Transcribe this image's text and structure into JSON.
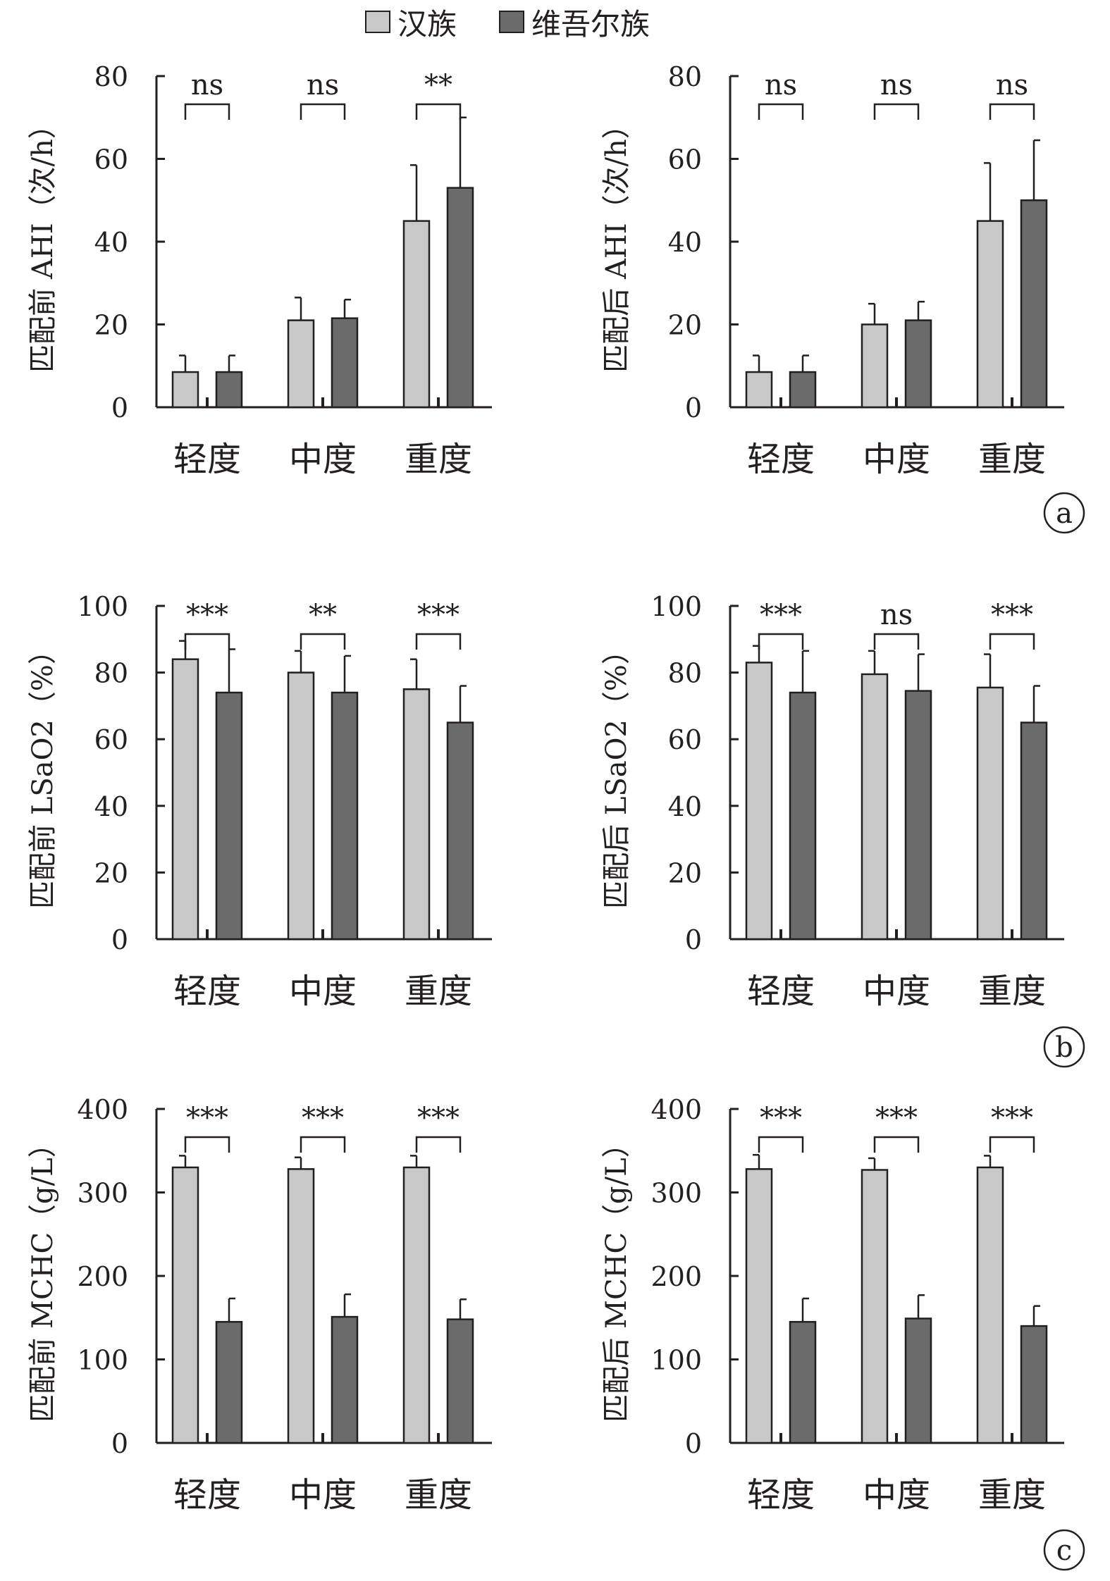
{
  "legend": {
    "han_label": "汉族",
    "uyghur_label": "维吾尔族",
    "han_color": "#c8c8c8",
    "uyghur_color": "#6b6b6b"
  },
  "chart_data": [
    {
      "type": "bar",
      "panel": "a",
      "ylabel": "匹配前 AHI（次/h）",
      "ylim": [
        0,
        80
      ],
      "yticks": [
        0,
        20,
        40,
        60,
        80
      ],
      "categories": [
        "轻度",
        "中度",
        "重度"
      ],
      "series": [
        {
          "name": "汉族",
          "values": [
            8.5,
            21,
            45
          ],
          "errors": [
            4,
            5.5,
            13.5
          ]
        },
        {
          "name": "维吾尔族",
          "values": [
            8.5,
            21.5,
            53
          ],
          "errors": [
            4,
            4.5,
            17
          ]
        }
      ],
      "significance": [
        "ns",
        "ns",
        "**"
      ]
    },
    {
      "type": "bar",
      "panel": "a",
      "ylabel": "匹配后 AHI（次/h）",
      "ylim": [
        0,
        80
      ],
      "yticks": [
        0,
        20,
        40,
        60,
        80
      ],
      "categories": [
        "轻度",
        "中度",
        "重度"
      ],
      "series": [
        {
          "name": "汉族",
          "values": [
            8.5,
            20,
            45
          ],
          "errors": [
            4,
            5,
            14
          ]
        },
        {
          "name": "维吾尔族",
          "values": [
            8.5,
            21,
            50
          ],
          "errors": [
            4,
            4.5,
            14.5
          ]
        }
      ],
      "significance": [
        "ns",
        "ns",
        "ns"
      ]
    },
    {
      "type": "bar",
      "panel": "b",
      "ylabel": "匹配前 LSaO2（%）",
      "ylim": [
        0,
        100
      ],
      "yticks": [
        0,
        20,
        40,
        60,
        80,
        100
      ],
      "categories": [
        "轻度",
        "中度",
        "重度"
      ],
      "series": [
        {
          "name": "汉族",
          "values": [
            84,
            80,
            75
          ],
          "errors": [
            5.5,
            6.5,
            9
          ]
        },
        {
          "name": "维吾尔族",
          "values": [
            74,
            74,
            65
          ],
          "errors": [
            13,
            11,
            11
          ]
        }
      ],
      "significance": [
        "***",
        "**",
        "***"
      ]
    },
    {
      "type": "bar",
      "panel": "b",
      "ylabel": "匹配后 LSaO2（%）",
      "ylim": [
        0,
        100
      ],
      "yticks": [
        0,
        20,
        40,
        60,
        80,
        100
      ],
      "categories": [
        "轻度",
        "中度",
        "重度"
      ],
      "series": [
        {
          "name": "汉族",
          "values": [
            83,
            79.5,
            75.5
          ],
          "errors": [
            5,
            7,
            10
          ]
        },
        {
          "name": "维吾尔族",
          "values": [
            74,
            74.5,
            65
          ],
          "errors": [
            12.5,
            11,
            11
          ]
        }
      ],
      "significance": [
        "***",
        "ns",
        "***"
      ]
    },
    {
      "type": "bar",
      "panel": "c",
      "ylabel": "匹配前 MCHC（g/L）",
      "ylim": [
        0,
        400
      ],
      "yticks": [
        0,
        100,
        200,
        300,
        400
      ],
      "categories": [
        "轻度",
        "中度",
        "重度"
      ],
      "series": [
        {
          "name": "汉族",
          "values": [
            330,
            328,
            330
          ],
          "errors": [
            14,
            14,
            14
          ]
        },
        {
          "name": "维吾尔族",
          "values": [
            145,
            151,
            148
          ],
          "errors": [
            28,
            27,
            24
          ]
        }
      ],
      "significance": [
        "***",
        "***",
        "***"
      ]
    },
    {
      "type": "bar",
      "panel": "c",
      "ylabel": "匹配后 MCHC（g/L）",
      "ylim": [
        0,
        400
      ],
      "yticks": [
        0,
        100,
        200,
        300,
        400
      ],
      "categories": [
        "轻度",
        "中度",
        "重度"
      ],
      "series": [
        {
          "name": "汉族",
          "values": [
            328,
            327,
            330
          ],
          "errors": [
            17,
            14,
            14
          ]
        },
        {
          "name": "维吾尔族",
          "values": [
            145,
            149,
            140
          ],
          "errors": [
            28,
            28,
            24
          ]
        }
      ],
      "significance": [
        "***",
        "***",
        "***"
      ]
    }
  ],
  "panel_labels": [
    "a",
    "b",
    "c"
  ]
}
